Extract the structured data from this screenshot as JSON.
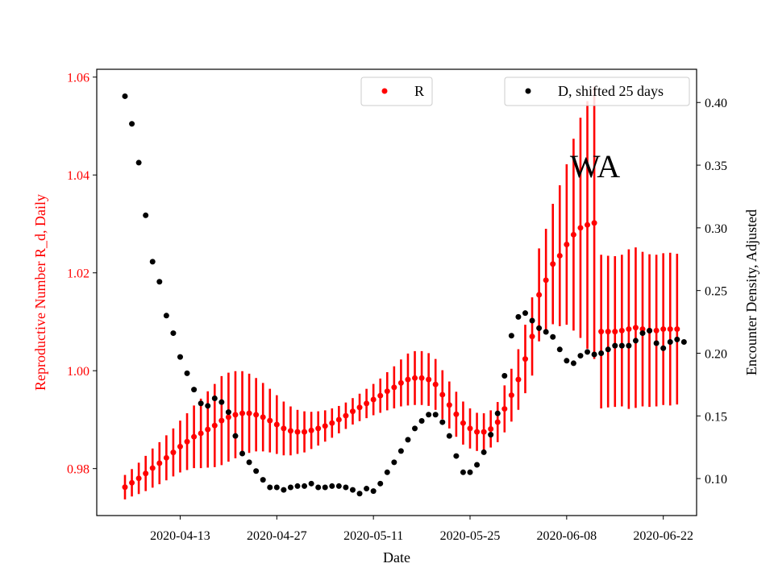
{
  "chart_data": {
    "type": "scatter",
    "title": "",
    "annotation": "WA",
    "xlabel": "Date",
    "ylabel_left": "Reproductive Number R_d, Daily",
    "ylabel_right": "Encounter Density, Adjusted",
    "x_start": "2020-04-05",
    "x_ticks": [
      "2020-04-13",
      "2020-04-27",
      "2020-05-11",
      "2020-05-25",
      "2020-06-08",
      "2020-06-22"
    ],
    "y_left_ticks": [
      "0.98",
      "1.00",
      "1.02",
      "1.04",
      "1.06"
    ],
    "y_right_ticks": [
      "0.10",
      "0.15",
      "0.20",
      "0.25",
      "0.30",
      "0.35",
      "0.40"
    ],
    "y_left_range": [
      0.9704,
      1.0616
    ],
    "y_right_range": [
      0.0705,
      0.4265
    ],
    "grid": false,
    "legend_left": "upper-center",
    "legend_right": "upper-right",
    "series": [
      {
        "name": "R",
        "color": "#ff0000",
        "axis": "left",
        "y": [
          0.9762,
          0.9771,
          0.978,
          0.979,
          0.9801,
          0.9811,
          0.9822,
          0.9833,
          0.9845,
          0.9855,
          0.9865,
          0.9872,
          0.988,
          0.9888,
          0.9898,
          0.9905,
          0.991,
          0.9913,
          0.9913,
          0.991,
          0.9905,
          0.9898,
          0.989,
          0.9882,
          0.9877,
          0.9875,
          0.9875,
          0.9878,
          0.9882,
          0.9887,
          0.9893,
          0.99,
          0.9908,
          0.9917,
          0.9925,
          0.9933,
          0.9941,
          0.9949,
          0.9958,
          0.9966,
          0.9975,
          0.9982,
          0.9985,
          0.9985,
          0.9982,
          0.9972,
          0.9951,
          0.993,
          0.9911,
          0.9893,
          0.9882,
          0.9875,
          0.9875,
          0.9881,
          0.9895,
          0.9922,
          0.995,
          0.9982,
          1.0024,
          1.007,
          1.0155,
          1.0185,
          1.0218,
          1.0235,
          1.0258,
          1.0278,
          1.0292,
          1.0298,
          1.0302,
          1.008,
          1.008,
          1.008,
          1.0082,
          1.0085,
          1.0088,
          1.0085,
          1.0082,
          1.0082,
          1.0085,
          1.0085,
          1.0085
        ],
        "err": [
          0.0025,
          0.0028,
          0.0032,
          0.0036,
          0.004,
          0.0043,
          0.0046,
          0.0049,
          0.0053,
          0.0058,
          0.0064,
          0.0071,
          0.0078,
          0.0085,
          0.0091,
          0.0091,
          0.0089,
          0.0086,
          0.0081,
          0.0075,
          0.007,
          0.0065,
          0.006,
          0.0055,
          0.005,
          0.0045,
          0.0042,
          0.0038,
          0.0035,
          0.0032,
          0.003,
          0.0028,
          0.0027,
          0.0027,
          0.0028,
          0.003,
          0.0032,
          0.0035,
          0.0039,
          0.0043,
          0.0048,
          0.0053,
          0.0055,
          0.0055,
          0.0054,
          0.0052,
          0.005,
          0.0048,
          0.0046,
          0.0044,
          0.0041,
          0.0039,
          0.0038,
          0.0038,
          0.0041,
          0.0048,
          0.0054,
          0.0062,
          0.007,
          0.008,
          0.0095,
          0.0105,
          0.0123,
          0.0144,
          0.0164,
          0.0196,
          0.0225,
          0.0253,
          0.0278,
          0.0157,
          0.0155,
          0.0154,
          0.0155,
          0.0163,
          0.0164,
          0.0158,
          0.0156,
          0.0155,
          0.0155,
          0.0156,
          0.0154
        ]
      },
      {
        "name": "D, shifted 25 days",
        "color": "#000000",
        "axis": "right",
        "y": [
          0.405,
          0.383,
          0.352,
          0.31,
          0.273,
          0.257,
          0.23,
          0.216,
          0.197,
          0.184,
          0.171,
          0.16,
          0.158,
          0.164,
          0.161,
          0.153,
          0.134,
          0.12,
          0.113,
          0.106,
          0.099,
          0.093,
          0.093,
          0.091,
          0.093,
          0.094,
          0.094,
          0.096,
          0.093,
          0.093,
          0.094,
          0.094,
          0.093,
          0.091,
          0.088,
          0.092,
          0.09,
          0.096,
          0.105,
          0.113,
          0.122,
          0.131,
          0.14,
          0.146,
          0.151,
          0.151,
          0.145,
          0.134,
          0.118,
          0.105,
          0.105,
          0.111,
          0.121,
          0.135,
          0.152,
          0.182,
          0.214,
          0.229,
          0.232,
          0.226,
          0.22,
          0.217,
          0.213,
          0.203,
          0.194,
          0.192,
          0.198,
          0.201,
          0.199,
          0.2,
          0.203,
          0.206,
          0.206,
          0.206,
          0.21,
          0.216,
          0.218,
          0.208,
          0.204,
          0.209,
          0.211,
          0.209
        ]
      }
    ]
  }
}
